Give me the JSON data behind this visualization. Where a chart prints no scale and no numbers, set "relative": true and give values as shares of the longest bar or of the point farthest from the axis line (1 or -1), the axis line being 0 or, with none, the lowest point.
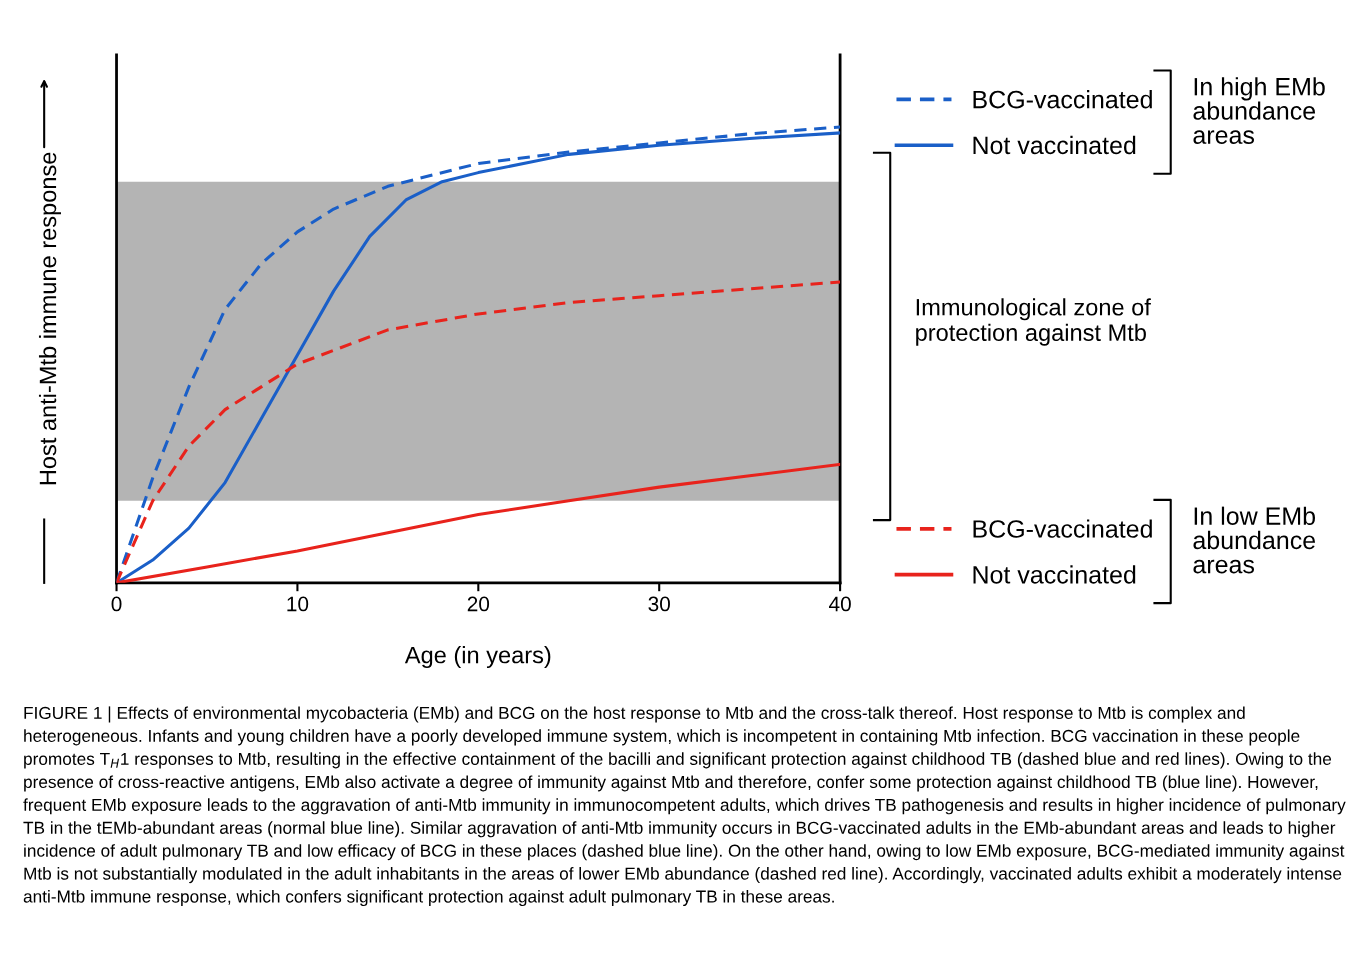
{
  "chart_data": {
    "type": "line",
    "relative": true,
    "xlabel": "Age (in years)",
    "ylabel": "Host anti-Mtb immune response",
    "xlim": [
      0,
      40
    ],
    "xticks": [
      0,
      10,
      20,
      30,
      40
    ],
    "legend": "right",
    "grid": false,
    "marker": "none",
    "series": [
      {
        "name": "BCG-vaccinated",
        "color": "#1a5fc8",
        "line_style": "dashed",
        "x": [
          0,
          2,
          4,
          6,
          8,
          10,
          12,
          15,
          20,
          25,
          30,
          35,
          40
        ],
        "values": [
          0,
          0.23,
          0.43,
          0.6,
          0.7,
          0.77,
          0.82,
          0.87,
          0.92,
          0.945,
          0.965,
          0.985,
          1
        ]
      },
      {
        "name": "Not vaccinated",
        "color": "#1a5fc8",
        "line_style": "solid",
        "x": [
          0,
          2,
          4,
          6,
          8,
          10,
          12,
          14,
          16,
          18,
          20,
          25,
          30,
          35,
          40
        ],
        "values": [
          0,
          0.05,
          0.12,
          0.22,
          0.36,
          0.5,
          0.64,
          0.76,
          0.84,
          0.88,
          0.9,
          0.94,
          0.96,
          0.975,
          0.987
        ]
      },
      {
        "name": "BCG-vaccinated",
        "color": "#e8231c",
        "line_style": "dashed",
        "x": [
          0,
          2,
          4,
          6,
          8,
          10,
          15,
          20,
          25,
          30,
          35,
          40
        ],
        "values": [
          0,
          0.18,
          0.3,
          0.38,
          0.43,
          0.48,
          0.555,
          0.59,
          0.615,
          0.63,
          0.645,
          0.66
        ]
      },
      {
        "name": "Not vaccinated",
        "color": "#e8231c",
        "line_style": "solid",
        "x": [
          0,
          5,
          10,
          15,
          20,
          25,
          30,
          35,
          40
        ],
        "values": [
          0,
          0.035,
          0.07,
          0.11,
          0.15,
          0.18,
          0.21,
          0.235,
          0.26
        ]
      }
    ],
    "bands": [
      {
        "axis": "y",
        "from": 0.18,
        "to": 0.88,
        "color": "#b4b4b4"
      }
    ],
    "annotations": [
      "In high EMb\nabundance\nareas",
      "In low EMb\nabundance\nareas",
      "Immunological zone of\nprotection against Mtb",
      "FIGURE 1 | Effects of environmental mycobacteria (EMb) and BCG on the host response to Mtb and the cross-talk thereof. Host response to Mtb is complex and heterogeneous. Infants and young children have a poorly developed immune system, which is incompetent in containing Mtb infection. BCG vaccination in these people promotes T$_{H}$1 responses to Mtb, resulting in the effective containment of the bacilli and significant protection against childhood TB (dashed blue and red lines). Owing to the presence of cross-reactive antigens, EMb also activate a degree of immunity against Mtb and therefore, confer some protection against childhood TB (blue line). However, frequent EMb exposure leads to the aggravation of anti-Mtb immunity in immunocompetent adults, which drives TB pathogenesis and results in higher incidence of pulmonary TB in the tEMb-abundant areas (normal blue line). Similar aggravation of anti-Mtb immunity occurs in BCG-vaccinated adults in the EMb-abundant areas and leads to higher incidence of adult pulmonary TB and low efficacy of BCG in these places (dashed blue line). On the other hand, owing to low EMb exposure, BCG-mediated immunity against Mtb is not substantially modulated in the adult inhabitants in the areas of lower EMb abundance (dashed red line). Accordingly, vaccinated adults exhibit a moderately intense anti-Mtb immune response, which confers significant protection against adult pulmonary TB in these areas."
    ]
  }
}
